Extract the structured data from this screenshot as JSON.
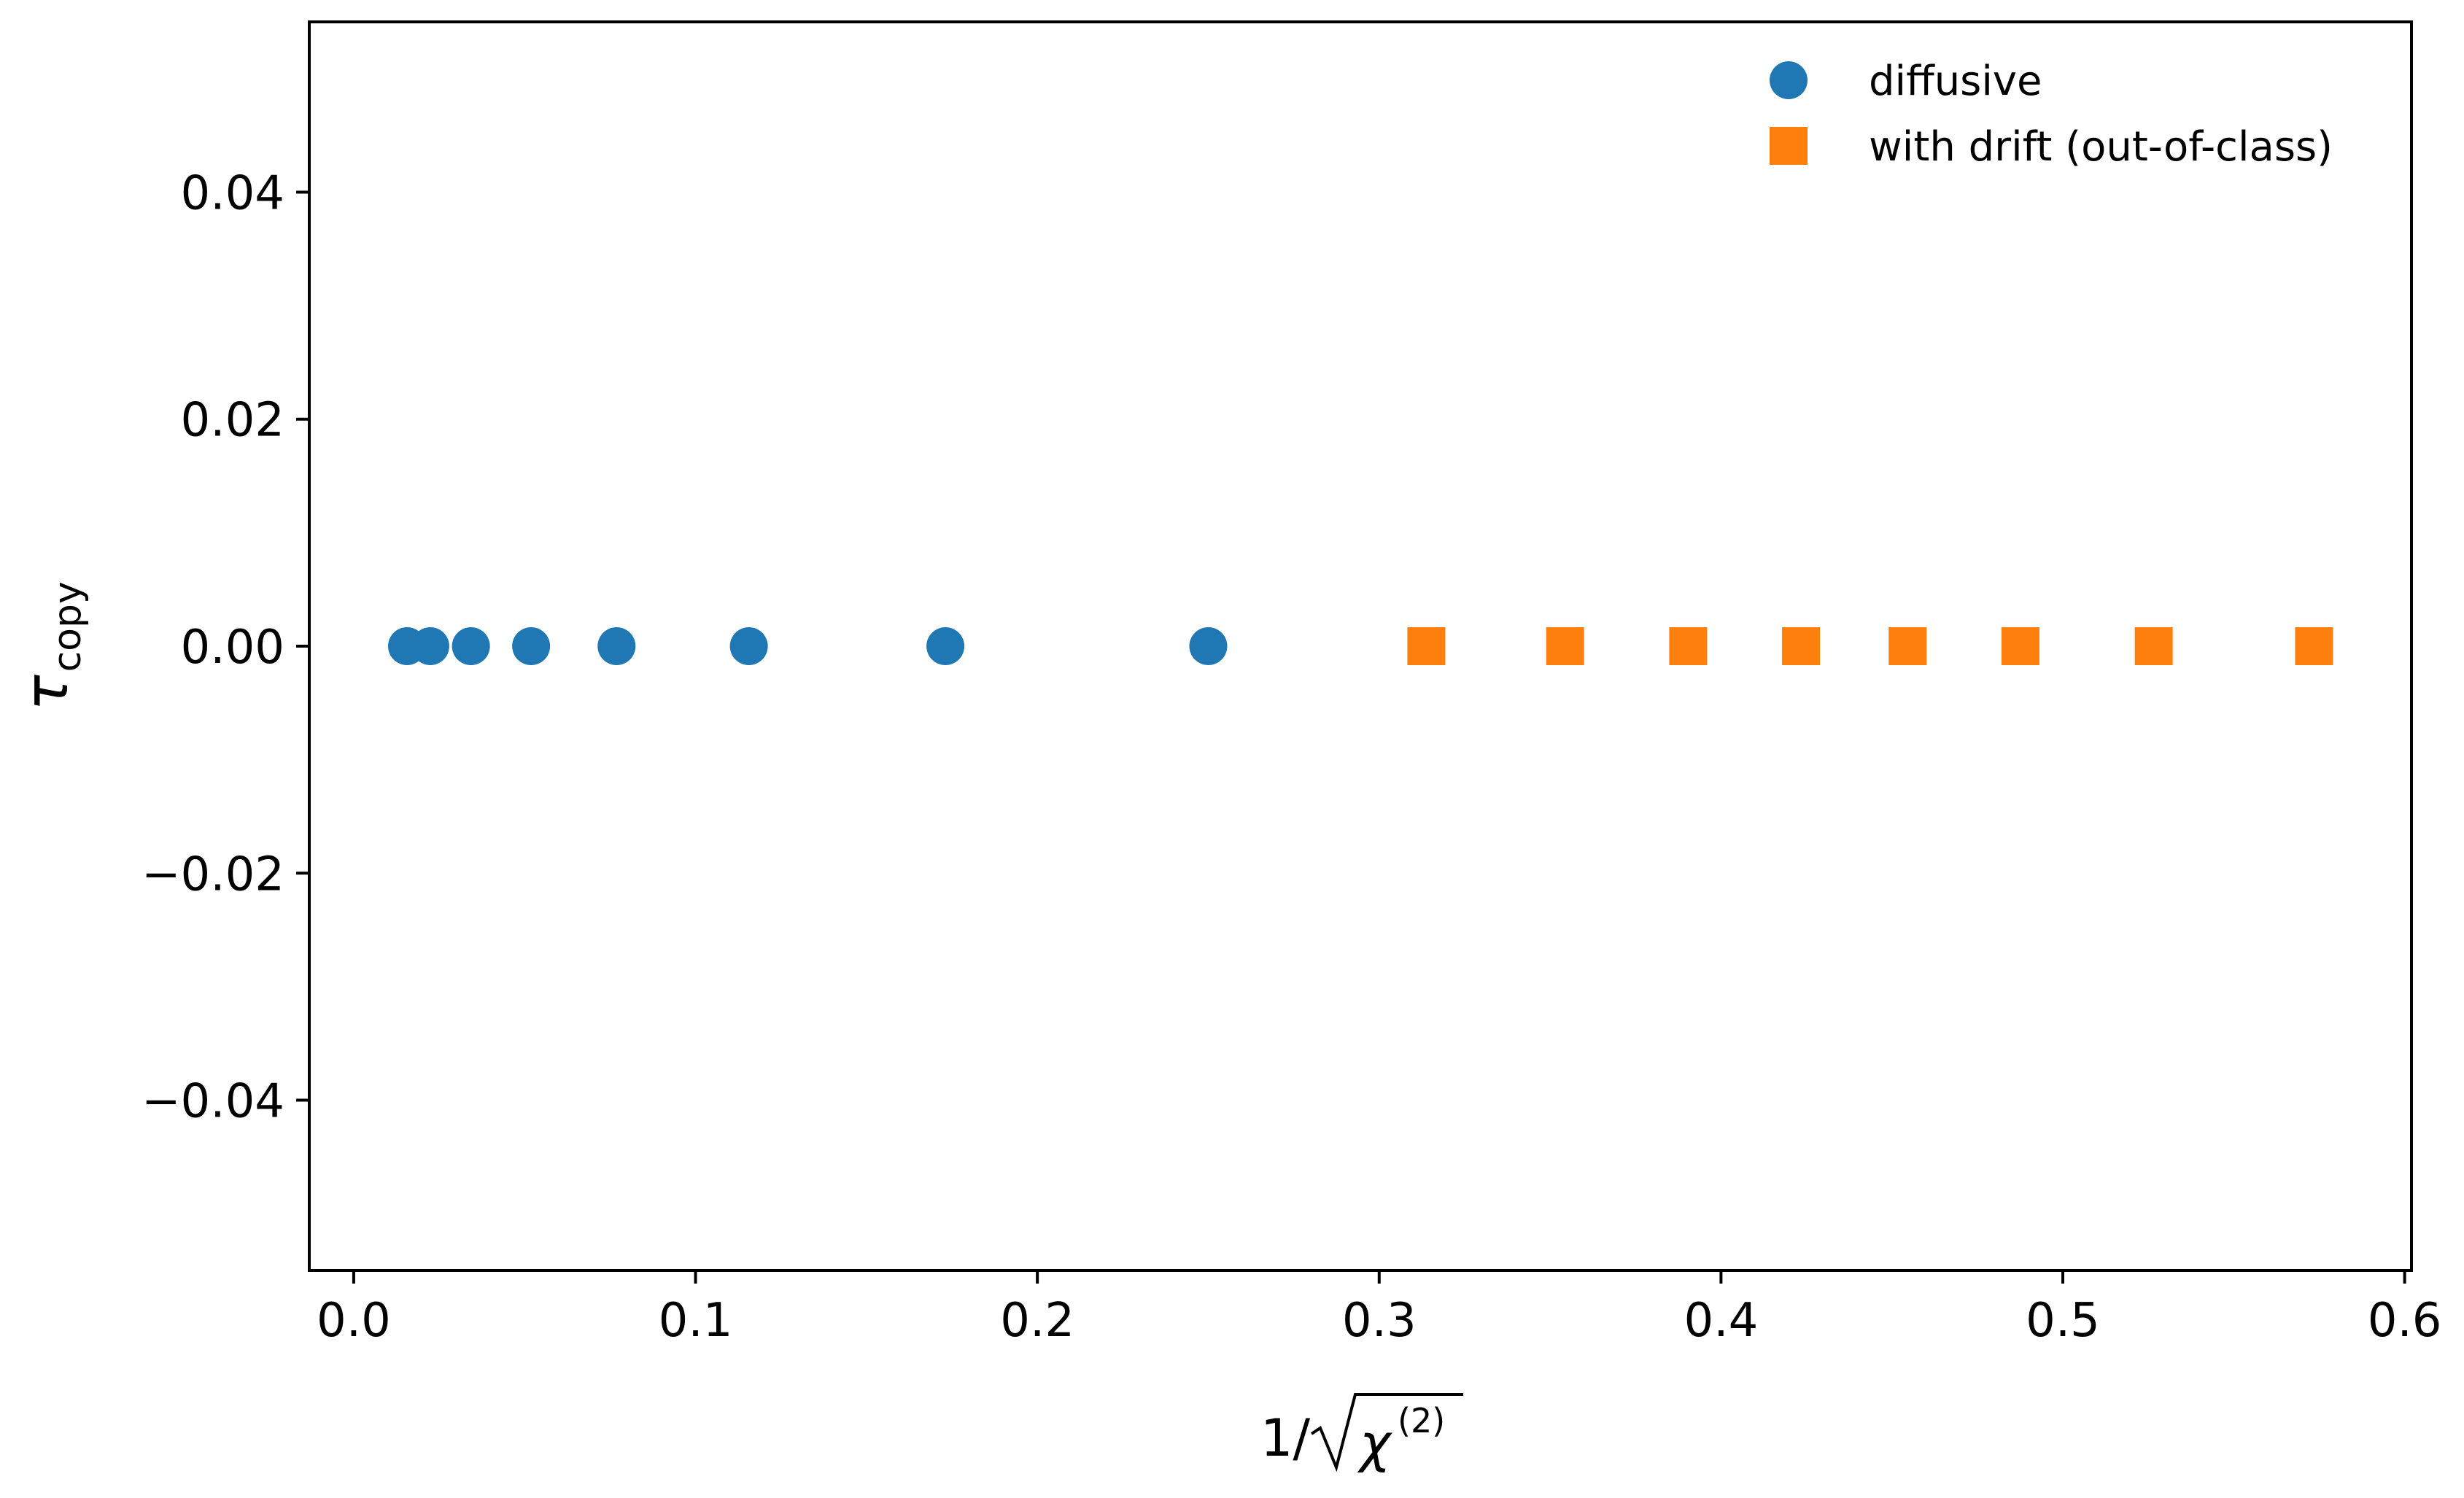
{
  "chart_data": {
    "type": "scatter",
    "title": "",
    "xlabel": {
      "prefix": "1/",
      "radicand": "χ",
      "superscript": "(2)"
    },
    "ylabel": {
      "main": "τ",
      "subscript": "copy"
    },
    "xlim": [
      -0.013,
      0.602
    ],
    "ylim": [
      -0.055,
      0.055
    ],
    "x_ticks": [
      0.0,
      0.1,
      0.2,
      0.3,
      0.4,
      0.5,
      0.6
    ],
    "x_tick_labels": [
      "0.0",
      "0.1",
      "0.2",
      "0.3",
      "0.4",
      "0.5",
      "0.6"
    ],
    "y_ticks": [
      0.04,
      0.02,
      0.0,
      -0.02,
      -0.04
    ],
    "y_tick_labels": [
      "0.04",
      "0.02",
      "0.00",
      "−0.02",
      "−0.04"
    ],
    "grid": false,
    "legend_position": "top-right",
    "series": [
      {
        "name": "diffusive",
        "marker": "circle",
        "color": "#1f77b4",
        "points": [
          {
            "x": 0.0156,
            "y": 0.0
          },
          {
            "x": 0.0224,
            "y": 0.0
          },
          {
            "x": 0.0343,
            "y": 0.0
          },
          {
            "x": 0.0519,
            "y": 0.0
          },
          {
            "x": 0.0769,
            "y": 0.0
          },
          {
            "x": 0.1156,
            "y": 0.0
          },
          {
            "x": 0.1731,
            "y": 0.0
          },
          {
            "x": 0.25,
            "y": 0.0
          }
        ]
      },
      {
        "name": "with drift (out-of-class)",
        "marker": "square",
        "color": "#ff7f0e",
        "points": [
          {
            "x": 0.3138,
            "y": 0.0
          },
          {
            "x": 0.3544,
            "y": 0.0
          },
          {
            "x": 0.3904,
            "y": 0.0
          },
          {
            "x": 0.4234,
            "y": 0.0
          },
          {
            "x": 0.4546,
            "y": 0.0
          },
          {
            "x": 0.4876,
            "y": 0.0
          },
          {
            "x": 0.5266,
            "y": 0.0
          },
          {
            "x": 0.5735,
            "y": 0.0
          }
        ]
      }
    ]
  }
}
